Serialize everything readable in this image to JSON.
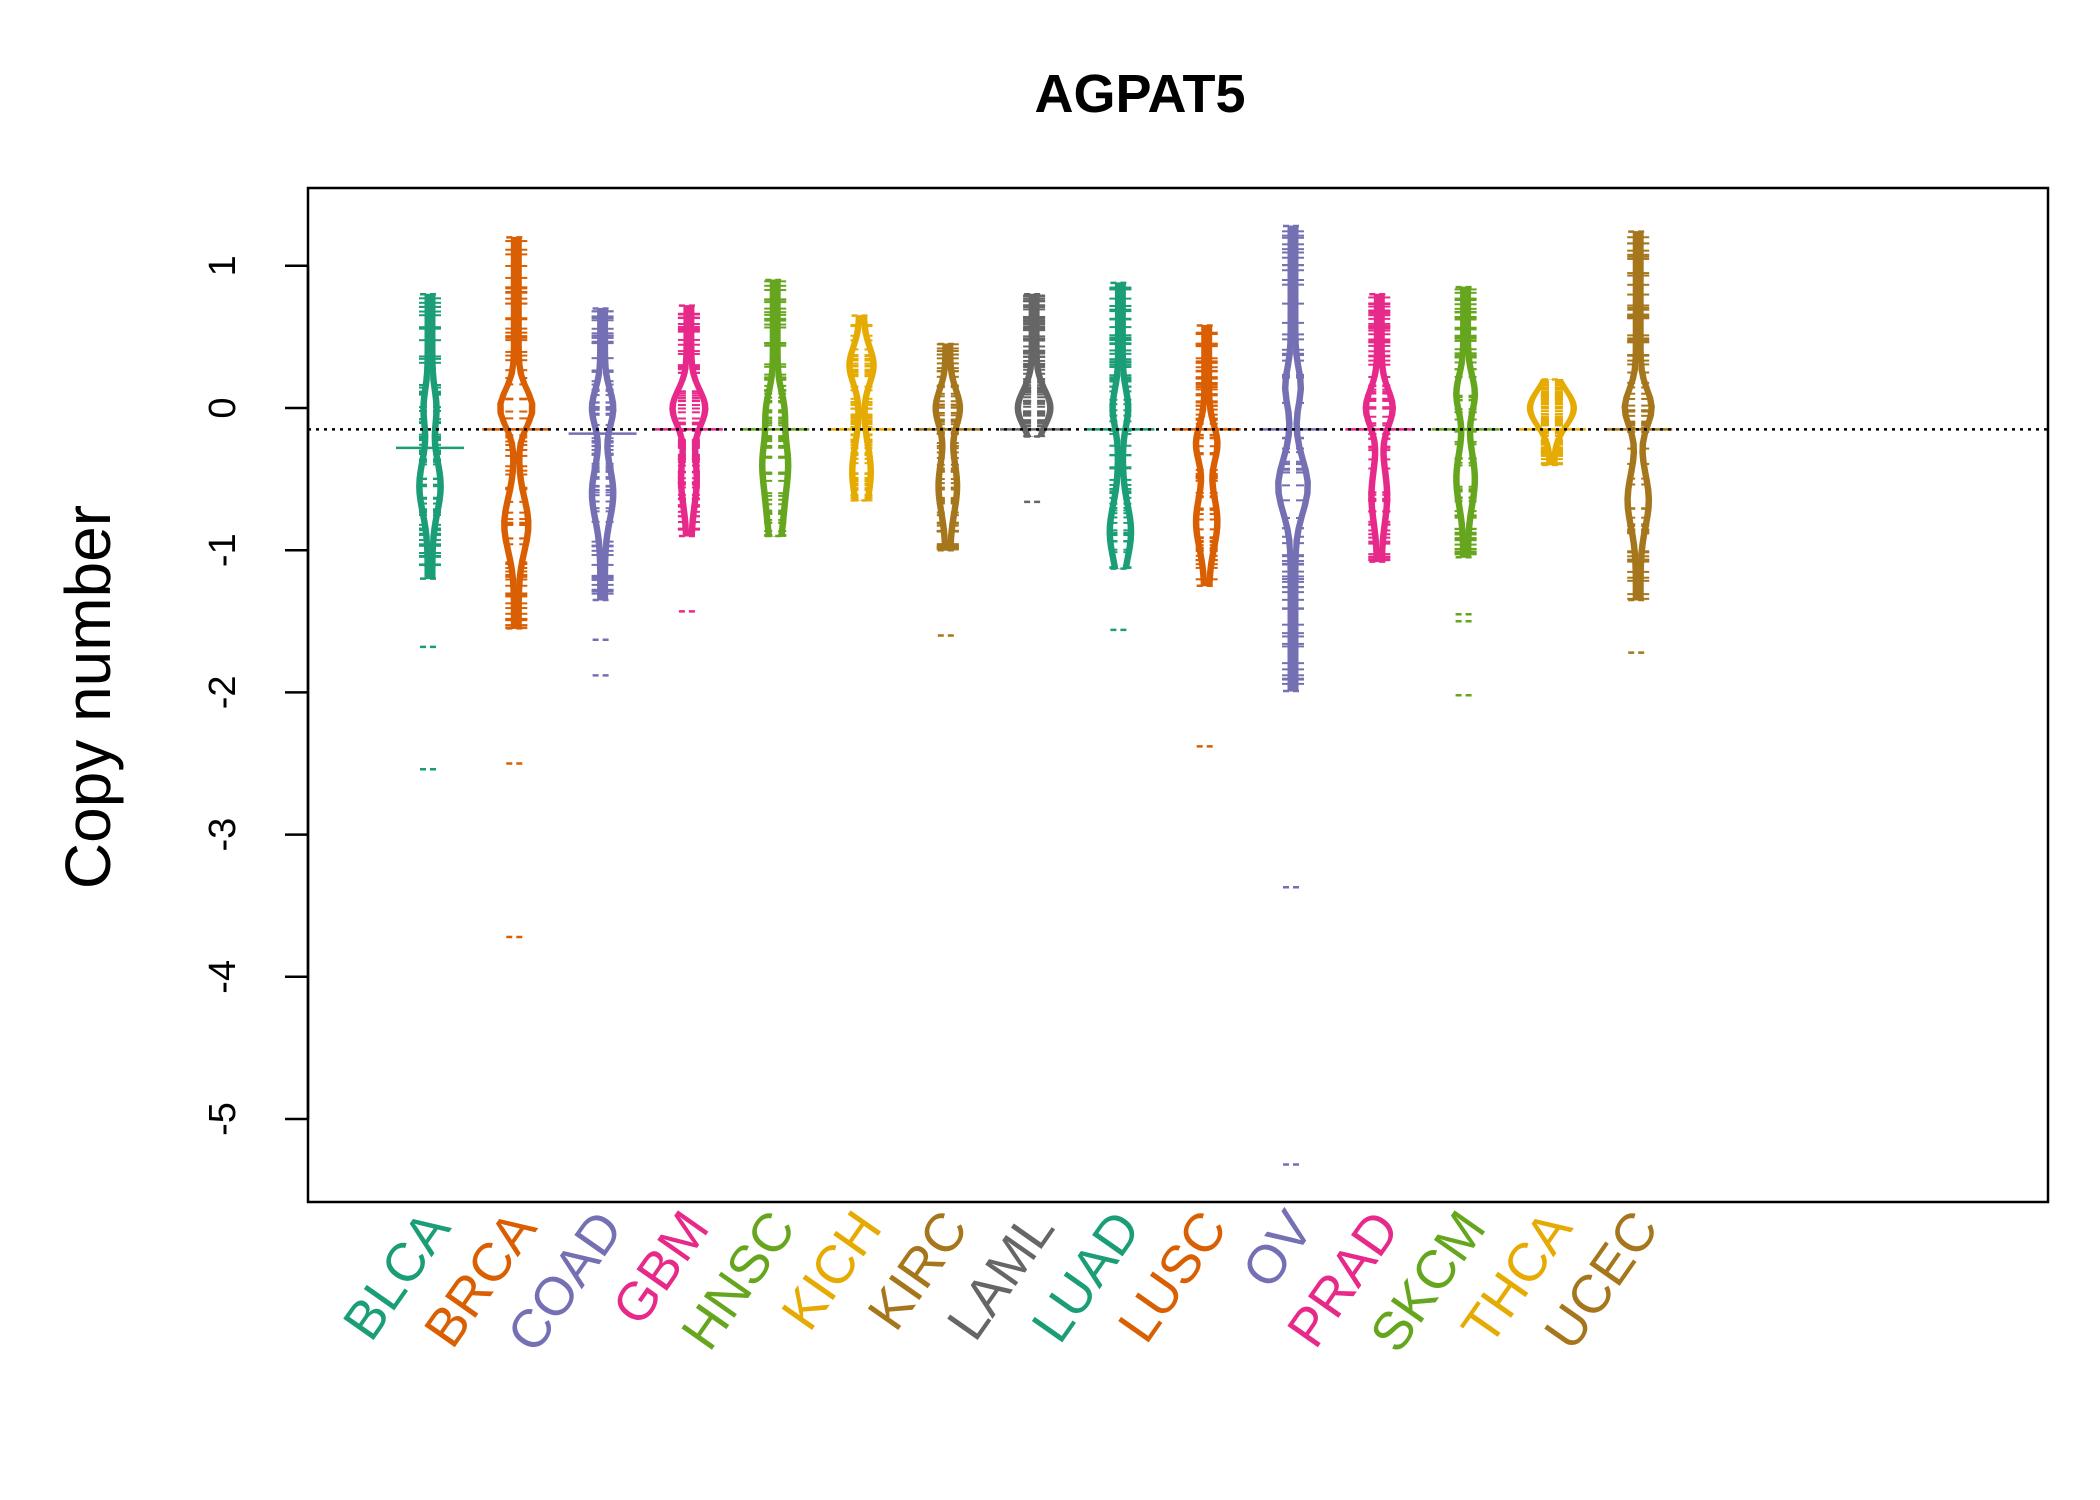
{
  "chart_data": {
    "type": "beanplot",
    "title": "AGPAT5",
    "ylabel": "Copy number",
    "xlabel": "",
    "ylim": [
      -5.6,
      1.5
    ],
    "yticks": [
      1,
      0,
      -1,
      -2,
      -3,
      -4,
      -5
    ],
    "yticklabels": [
      "1",
      "0",
      "-1",
      "-2",
      "-3",
      "-4",
      "-5"
    ],
    "reference_line": -0.15,
    "categories": [
      "BLCA",
      "BRCA",
      "COAD",
      "GBM",
      "HNSC",
      "KICH",
      "KIRC",
      "LAML",
      "LUAD",
      "LUSC",
      "OV",
      "PRAD",
      "SKCM",
      "THCA",
      "UCEC"
    ],
    "colors": [
      "#1B9E77",
      "#D95F02",
      "#7570B3",
      "#E7298A",
      "#66A61E",
      "#E6AB02",
      "#A6761D",
      "#666666",
      "#1B9E77",
      "#D95F02",
      "#7570B3",
      "#E7298A",
      "#66A61E",
      "#E6AB02",
      "#A6761D"
    ],
    "series": [
      {
        "category": "BLCA",
        "max": 0.8,
        "min": -1.2,
        "mean": -0.28,
        "outliers": [
          -1.68,
          -2.54
        ],
        "mode_points": [
          0.0,
          -0.55
        ],
        "widths": [
          0.3,
          0.6
        ]
      },
      {
        "category": "BRCA",
        "max": 1.2,
        "min": -1.55,
        "mean": -0.15,
        "outliers": [
          -2.5,
          -3.72
        ],
        "mode_points": [
          0.0,
          -0.82
        ],
        "widths": [
          1.0,
          0.7
        ]
      },
      {
        "category": "COAD",
        "max": 0.7,
        "min": -1.35,
        "mean": -0.18,
        "outliers": [
          -1.63,
          -1.88
        ],
        "mode_points": [
          0.0,
          -0.6
        ],
        "widths": [
          0.6,
          0.6
        ]
      },
      {
        "category": "GBM",
        "max": 0.72,
        "min": -0.9,
        "mean": -0.15,
        "outliers": [
          -1.43
        ],
        "mode_points": [
          0.0,
          -0.5
        ],
        "widths": [
          1.0,
          0.4
        ]
      },
      {
        "category": "HNSC",
        "max": 0.9,
        "min": -0.9,
        "mean": -0.15,
        "outliers": [],
        "mode_points": [
          0.0,
          -0.35,
          -0.7
        ],
        "widths": [
          0.4,
          0.6,
          0.4
        ]
      },
      {
        "category": "KICH",
        "max": 0.65,
        "min": -0.65,
        "mean": -0.15,
        "outliers": [],
        "mode_points": [
          0.3,
          -0.45
        ],
        "widths": [
          0.7,
          0.5
        ]
      },
      {
        "category": "KIRC",
        "max": 0.45,
        "min": -1.0,
        "mean": -0.15,
        "outliers": [
          -1.6
        ],
        "mode_points": [
          0.0,
          -0.55
        ],
        "widths": [
          0.7,
          0.5
        ]
      },
      {
        "category": "LAML",
        "max": 0.8,
        "min": -0.2,
        "mean": -0.15,
        "outliers": [
          -0.66
        ],
        "mode_points": [
          0.0
        ],
        "widths": [
          1.0
        ]
      },
      {
        "category": "LUAD",
        "max": 0.88,
        "min": -1.13,
        "mean": -0.15,
        "outliers": [
          -1.56
        ],
        "mode_points": [
          0.0,
          -0.87
        ],
        "widths": [
          0.4,
          0.6
        ]
      },
      {
        "category": "LUSC",
        "max": 0.58,
        "min": -1.25,
        "mean": -0.15,
        "outliers": [
          -2.38
        ],
        "mode_points": [
          -0.25,
          -0.8
        ],
        "widths": [
          0.6,
          0.6
        ]
      },
      {
        "category": "OV",
        "max": 1.28,
        "min": -1.99,
        "mean": -0.15,
        "outliers": [
          -3.37,
          -5.32
        ],
        "mode_points": [
          0.15,
          -0.55
        ],
        "widths": [
          0.4,
          0.9
        ]
      },
      {
        "category": "PRAD",
        "max": 0.8,
        "min": -1.08,
        "mean": -0.15,
        "outliers": [],
        "mode_points": [
          0.0,
          -0.62
        ],
        "widths": [
          0.8,
          0.4
        ]
      },
      {
        "category": "SKCM",
        "max": 0.85,
        "min": -1.05,
        "mean": -0.15,
        "outliers": [
          -1.45,
          -1.5,
          -2.02
        ],
        "mode_points": [
          0.1,
          -0.5
        ],
        "widths": [
          0.5,
          0.5
        ]
      },
      {
        "category": "THCA",
        "max": 0.2,
        "min": -0.4,
        "mean": -0.15,
        "outliers": [],
        "mode_points": [
          0.0
        ],
        "widths": [
          1.4
        ]
      },
      {
        "category": "UCEC",
        "max": 1.24,
        "min": -1.35,
        "mean": -0.15,
        "outliers": [
          -1.72
        ],
        "mode_points": [
          0.0,
          -0.65
        ],
        "widths": [
          0.8,
          0.6
        ]
      }
    ],
    "grid": false,
    "legend": "none"
  }
}
